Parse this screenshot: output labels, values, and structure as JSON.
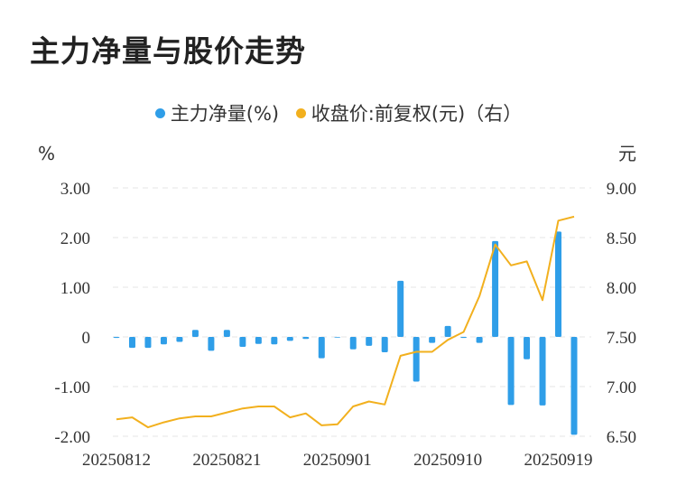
{
  "header": {
    "title": "主力净量与股价走势"
  },
  "chart_data": {
    "type": "bar",
    "title": "主力净量与股价走势",
    "legend": [
      {
        "name": "主力净量(%)",
        "color": "#2f9ee8"
      },
      {
        "name": "收盘价:前复权(元)（右）",
        "color": "#f2b01e"
      }
    ],
    "legend_position": "top-center",
    "y_left": {
      "unit": "%",
      "min": -2,
      "max": 3,
      "ticks": [
        "-2.00",
        "-1.00",
        "0",
        "1.00",
        "2.00",
        "3.00"
      ]
    },
    "y_right": {
      "unit": "元",
      "min": 6.5,
      "max": 9.0,
      "ticks": [
        "6.50",
        "7.00",
        "7.50",
        "8.00",
        "8.50",
        "9.00"
      ]
    },
    "x_tick_labels": [
      "20250812",
      "20250821",
      "20250901",
      "20250910",
      "20250919"
    ],
    "grid": true,
    "series": [
      {
        "name": "主力净量(%)",
        "type": "bar",
        "color": "#2f9ee8",
        "values": [
          -0.02,
          -0.22,
          -0.22,
          -0.15,
          -0.1,
          0.14,
          -0.28,
          0.14,
          -0.2,
          -0.14,
          -0.15,
          -0.08,
          -0.04,
          -0.43,
          0.0,
          -0.25,
          -0.18,
          -0.31,
          1.13,
          -0.9,
          -0.12,
          0.22,
          -0.02,
          -0.12,
          1.93,
          -1.37,
          -0.45,
          -1.38,
          2.12,
          -1.97
        ]
      },
      {
        "name": "收盘价:前复权(元)（右）",
        "type": "line",
        "color": "#f2b01e",
        "values": [
          6.67,
          6.69,
          6.59,
          6.64,
          6.68,
          6.7,
          6.7,
          6.74,
          6.78,
          6.8,
          6.8,
          6.69,
          6.73,
          6.61,
          6.62,
          6.8,
          6.85,
          6.82,
          7.31,
          7.35,
          7.35,
          7.47,
          7.55,
          7.91,
          8.43,
          8.22,
          8.26,
          7.87,
          8.67,
          8.71
        ]
      }
    ]
  }
}
